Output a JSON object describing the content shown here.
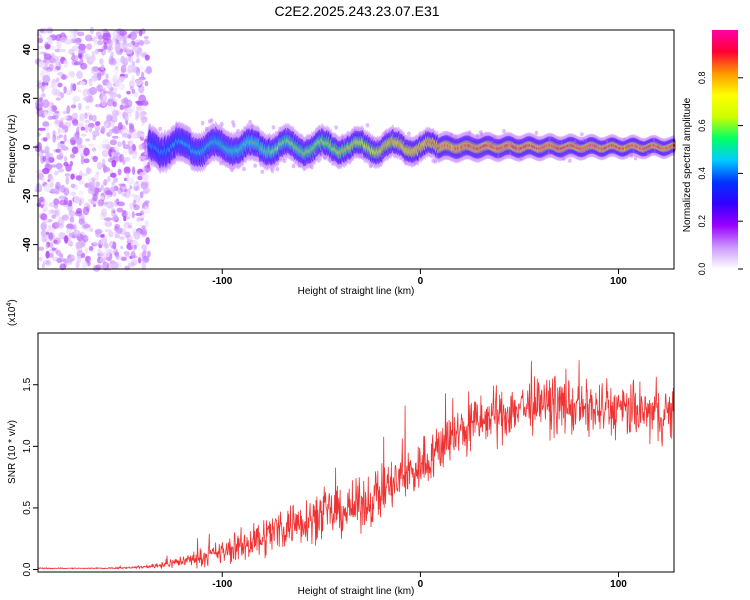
{
  "figure_title": "C2E2.2025.243.23.07.E31",
  "chart_data": [
    {
      "type": "heatmap",
      "title": "C2E2.2025.243.23.07.E31",
      "xlabel": "Height of straight line (km)",
      "ylabel": "Frequency (Hz)",
      "xlim": [
        -193,
        128
      ],
      "ylim": [
        -50,
        48
      ],
      "x_ticks": [
        -100,
        0,
        100
      ],
      "x_tick_labels": [
        "-100",
        "0",
        "100"
      ],
      "y_ticks": [
        -40,
        -20,
        0,
        20,
        40
      ],
      "y_tick_labels": [
        "-40",
        "-20",
        "0",
        "20",
        "40"
      ],
      "colorbar": {
        "label": "Normalized spectral amplitude",
        "range": [
          0,
          1
        ],
        "ticks": [
          0.0,
          0.2,
          0.4,
          0.6,
          0.8
        ],
        "tick_labels": [
          "0.0",
          "0.2",
          "0.4",
          "0.6",
          "0.8"
        ],
        "colormap": [
          "#ffffff",
          "#cc99ff",
          "#9900ff",
          "#3300ff",
          "#0033ff",
          "#00ccff",
          "#00ff66",
          "#ccff00",
          "#ffff00",
          "#ff9900",
          "#ff0033",
          "#ff00aa"
        ]
      },
      "regions": [
        {
          "name": "noise",
          "x": [
            -193,
            -137
          ],
          "frequency_range": [
            -50,
            48
          ],
          "amplitude": [
            0.02,
            0.15
          ]
        },
        {
          "name": "signal-band",
          "x": [
            -137,
            128
          ],
          "center_frequency": 0,
          "half_width_hz": [
            6,
            3
          ],
          "peak_amplitude": [
            0.45,
            0.95
          ]
        }
      ]
    },
    {
      "type": "line",
      "xlabel": "Height of straight line (km)",
      "ylabel": "SNR (10 * v/v)",
      "y_scale_label": "(x10",
      "y_scale_exponent": "4",
      "y_scale_close": ")",
      "xlim": [
        -193,
        128
      ],
      "ylim": [
        -0.02,
        1.92
      ],
      "x_ticks": [
        -100,
        0,
        100
      ],
      "x_tick_labels": [
        "-100",
        "0",
        "100"
      ],
      "y_ticks": [
        0.0,
        0.5,
        1.0,
        1.5
      ],
      "y_tick_labels": [
        "0.0",
        "0.5",
        "1.0",
        "1.5"
      ],
      "line_color": "#ee3333",
      "series": [
        {
          "name": "SNR",
          "x": [
            -193,
            -160,
            -140,
            -130,
            -120,
            -110,
            -100,
            -90,
            -80,
            -70,
            -60,
            -50,
            -40,
            -30,
            -20,
            -10,
            0,
            10,
            20,
            30,
            40,
            50,
            60,
            70,
            80,
            90,
            100,
            110,
            120,
            128
          ],
          "mean": [
            0.01,
            0.01,
            0.02,
            0.04,
            0.07,
            0.1,
            0.14,
            0.19,
            0.26,
            0.34,
            0.4,
            0.44,
            0.47,
            0.52,
            0.62,
            0.73,
            0.84,
            1.0,
            1.12,
            1.2,
            1.25,
            1.32,
            1.33,
            1.34,
            1.3,
            1.3,
            1.29,
            1.28,
            1.25,
            1.27
          ],
          "spread": [
            0.005,
            0.005,
            0.01,
            0.03,
            0.05,
            0.07,
            0.1,
            0.13,
            0.16,
            0.18,
            0.19,
            0.19,
            0.19,
            0.2,
            0.22,
            0.22,
            0.22,
            0.22,
            0.22,
            0.22,
            0.22,
            0.22,
            0.22,
            0.22,
            0.22,
            0.22,
            0.22,
            0.22,
            0.22,
            0.22
          ]
        }
      ]
    }
  ]
}
